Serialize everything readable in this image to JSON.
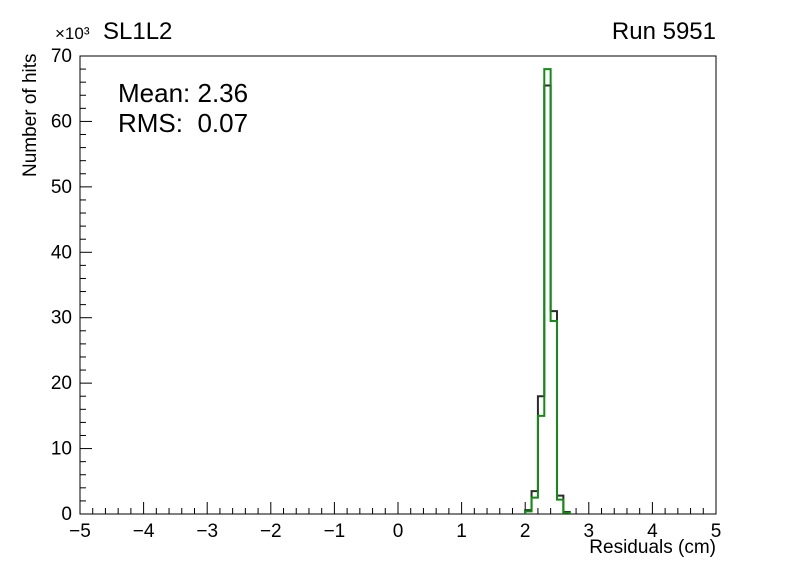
{
  "header": {
    "scale_label": "×10³",
    "title": "SL1L2",
    "run_label": "Run 5951"
  },
  "stats_box": {
    "mean_line": "Mean: 2.36",
    "rms_line": "RMS:  0.07"
  },
  "axes": {
    "x_title": "Residuals (cm)",
    "y_title": "Number of hits"
  },
  "chart_data": {
    "type": "bar",
    "style": "step-histogram-outline",
    "title": "SL1L2",
    "annotation": "Run 5951",
    "xlabel": "Residuals (cm)",
    "ylabel": "Number of hits",
    "y_unit_scale": "×10³",
    "stats": {
      "mean": 2.36,
      "rms": 0.07
    },
    "xlim": [
      -5,
      5
    ],
    "ylim": [
      0,
      70
    ],
    "grid": false,
    "legend": null,
    "x_major_ticks": [
      -5,
      -4,
      -3,
      -2,
      -1,
      0,
      1,
      2,
      3,
      4,
      5
    ],
    "x_tick_labels": [
      "−5",
      "−4",
      "−3",
      "−2",
      "−1",
      "0",
      "1",
      "2",
      "3",
      "4",
      "5"
    ],
    "y_major_ticks": [
      0,
      10,
      20,
      30,
      40,
      50,
      60,
      70
    ],
    "y_tick_labels": [
      "0",
      "10",
      "20",
      "30",
      "40",
      "50",
      "60",
      "70"
    ],
    "minor_divisions": 5,
    "values_unit": "10^3 hits",
    "series": [
      {
        "name": "black",
        "color": "#2b2b2b",
        "bin_edges": [
          2.0,
          2.1,
          2.2,
          2.3,
          2.4,
          2.5,
          2.6,
          2.7
        ],
        "values": [
          0.6,
          3.5,
          18,
          65.5,
          31,
          2.8,
          0.3
        ]
      },
      {
        "name": "green",
        "color": "#128c12",
        "bin_edges": [
          2.0,
          2.1,
          2.2,
          2.3,
          2.4,
          2.5,
          2.6,
          2.7
        ],
        "values": [
          0.4,
          2.5,
          15,
          68,
          29.5,
          2.2,
          0.2
        ]
      }
    ]
  }
}
